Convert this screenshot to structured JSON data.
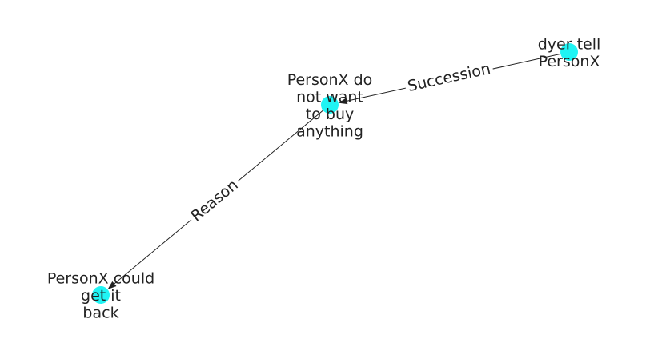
{
  "graph": {
    "node_color": "#1ff4f4",
    "edge_color": "#222222",
    "nodes": [
      {
        "id": "dyer",
        "lines": [
          "dyer tell",
          "PersonX"
        ]
      },
      {
        "id": "buy",
        "lines": [
          "PersonX do",
          "not want",
          "to buy",
          "anything"
        ]
      },
      {
        "id": "back",
        "lines": [
          "PersonX could",
          "get it",
          "back"
        ]
      }
    ],
    "edges": [
      {
        "source": "dyer",
        "target": "buy",
        "label": "Succession"
      },
      {
        "source": "buy",
        "target": "back",
        "label": "Reason"
      }
    ]
  }
}
